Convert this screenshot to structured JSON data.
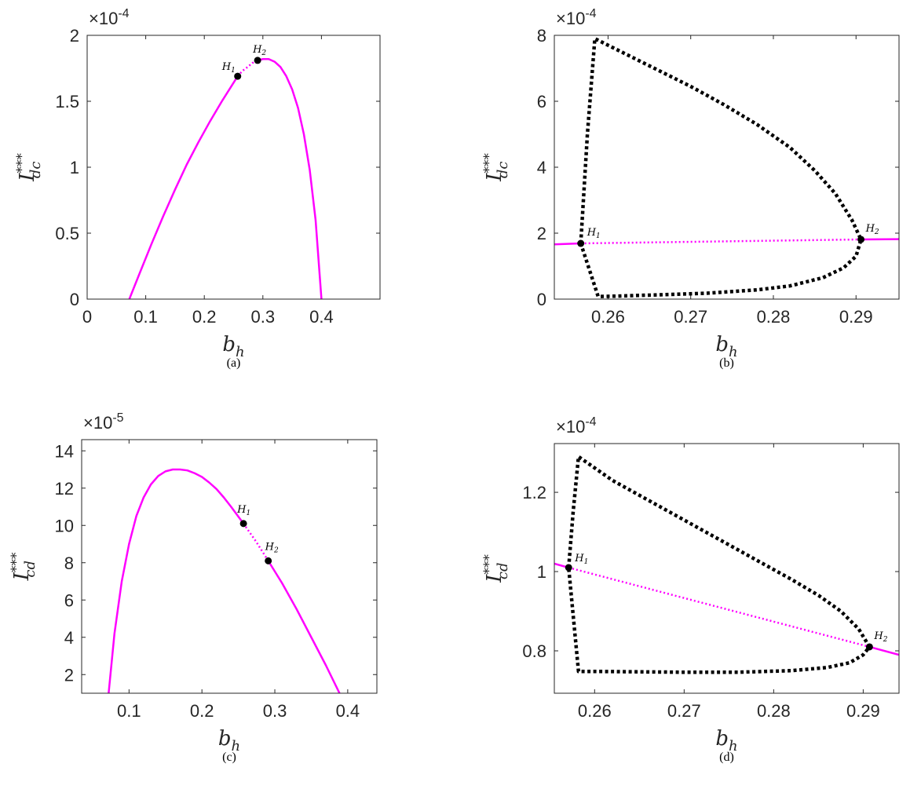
{
  "chart_data": [
    {
      "type": "line",
      "caption": "(a)",
      "scale": {
        "base": "×10",
        "exp": "-4"
      },
      "xlabel": {
        "text": "b",
        "sub": "h"
      },
      "ylabel": {
        "text": "I",
        "sup": "***",
        "sub": "dc"
      },
      "xlim": [
        0,
        0.5
      ],
      "xticks": [
        0,
        0.1,
        0.2,
        0.3,
        0.4
      ],
      "ylim": [
        0,
        2
      ],
      "yticks": [
        0,
        0.5,
        1,
        1.5,
        2
      ],
      "series": [
        {
          "color": "#ff00ff",
          "linestyle": "solid",
          "linewidth": 2.5,
          "x": [
            0.072,
            0.09,
            0.11,
            0.13,
            0.15,
            0.17,
            0.19,
            0.21,
            0.23,
            0.257
          ],
          "values": [
            0,
            0.2,
            0.42,
            0.63,
            0.83,
            1.02,
            1.19,
            1.35,
            1.5,
            1.69
          ]
        },
        {
          "color": "#ff00ff",
          "linestyle": "dotted",
          "linewidth": 2.5,
          "x": [
            0.257,
            0.265,
            0.274,
            0.282,
            0.291
          ],
          "values": [
            1.69,
            1.73,
            1.76,
            1.79,
            1.81
          ]
        },
        {
          "color": "#ff00ff",
          "linestyle": "solid",
          "linewidth": 2.5,
          "x": [
            0.291,
            0.3,
            0.31,
            0.32,
            0.33,
            0.34,
            0.35,
            0.36,
            0.37,
            0.38,
            0.39,
            0.4
          ],
          "values": [
            1.81,
            1.82,
            1.82,
            1.8,
            1.76,
            1.69,
            1.59,
            1.45,
            1.25,
            0.98,
            0.6,
            0
          ]
        }
      ],
      "points": [
        {
          "label": {
            "text": "H",
            "sub": "1"
          },
          "x": 0.257,
          "y": 1.69
        },
        {
          "label": {
            "text": "H",
            "sub": "2"
          },
          "x": 0.291,
          "y": 1.81
        }
      ]
    },
    {
      "type": "line",
      "caption": "(b)",
      "scale": {
        "base": "×10",
        "exp": "-4"
      },
      "xlabel": {
        "text": "b",
        "sub": "h"
      },
      "ylabel": {
        "text": "I",
        "sup": "***",
        "sub": "dc"
      },
      "xlim": [
        0.2535,
        0.2952
      ],
      "xticks": [
        0.26,
        0.27,
        0.28,
        0.29
      ],
      "ylim": [
        0,
        8
      ],
      "yticks": [
        0,
        2,
        4,
        6,
        8
      ],
      "series": [
        {
          "color": "#ff00ff",
          "linestyle": "solid",
          "linewidth": 2.5,
          "x": [
            0.2535,
            0.2567
          ],
          "values": [
            1.66,
            1.69
          ]
        },
        {
          "color": "#ff00ff",
          "linestyle": "dotted",
          "linewidth": 2.5,
          "x": [
            0.2567,
            0.2906
          ],
          "values": [
            1.69,
            1.81
          ]
        },
        {
          "color": "#ff00ff",
          "linestyle": "solid",
          "linewidth": 2.5,
          "x": [
            0.2906,
            0.2952
          ],
          "values": [
            1.81,
            1.82
          ]
        },
        {
          "color": "#000000",
          "linestyle": "dotted",
          "linewidth": 4.5,
          "x": [
            0.2567,
            0.2575,
            0.2584,
            0.262,
            0.266,
            0.27,
            0.274,
            0.278,
            0.282,
            0.285,
            0.2875,
            0.2895,
            0.2906,
            0.29,
            0.2885,
            0.286,
            0.282,
            0.278,
            0.272,
            0.266,
            0.261,
            0.2588,
            0.2567
          ],
          "values": [
            1.69,
            5,
            7.9,
            7.45,
            6.95,
            6.45,
            5.9,
            5.3,
            4.6,
            3.9,
            3.2,
            2.4,
            1.81,
            1.3,
            0.95,
            0.65,
            0.4,
            0.28,
            0.18,
            0.13,
            0.09,
            0.08,
            1.69
          ]
        }
      ],
      "points": [
        {
          "label": {
            "text": "H",
            "sub": "1"
          },
          "x": 0.2567,
          "y": 1.69
        },
        {
          "label": {
            "text": "H",
            "sub": "2"
          },
          "x": 0.2906,
          "y": 1.81
        }
      ]
    },
    {
      "type": "line",
      "caption": "(c)",
      "scale": {
        "base": "×10",
        "exp": "-5"
      },
      "xlabel": {
        "text": "b",
        "sub": "h"
      },
      "ylabel": {
        "text": "I",
        "sup": "***",
        "sub": "cd"
      },
      "xlim": [
        0.035,
        0.44
      ],
      "xticks": [
        0.1,
        0.2,
        0.3,
        0.4
      ],
      "ylim": [
        1.0,
        14.6
      ],
      "yticks": [
        2,
        4,
        6,
        8,
        10,
        12,
        14
      ],
      "series": [
        {
          "color": "#ff00ff",
          "linestyle": "solid",
          "linewidth": 2.5,
          "x": [
            0.072,
            0.08,
            0.09,
            0.1,
            0.11,
            0.12,
            0.13,
            0.14,
            0.15,
            0.16,
            0.17,
            0.18,
            0.19,
            0.2,
            0.21,
            0.22,
            0.23,
            0.24,
            0.257
          ],
          "values": [
            1,
            4.2,
            7.0,
            9.0,
            10.5,
            11.5,
            12.2,
            12.65,
            12.9,
            13.0,
            13.0,
            12.95,
            12.8,
            12.6,
            12.3,
            11.95,
            11.5,
            11.0,
            10.1
          ]
        },
        {
          "color": "#ff00ff",
          "linestyle": "dotted",
          "linewidth": 2.5,
          "x": [
            0.257,
            0.274,
            0.291
          ],
          "values": [
            10.1,
            9.15,
            8.1
          ]
        },
        {
          "color": "#ff00ff",
          "linestyle": "solid",
          "linewidth": 2.5,
          "x": [
            0.291,
            0.31,
            0.33,
            0.35,
            0.37,
            0.39
          ],
          "values": [
            8.1,
            6.9,
            5.5,
            4.0,
            2.5,
            0.9
          ]
        }
      ],
      "points": [
        {
          "label": {
            "text": "H",
            "sub": "1"
          },
          "x": 0.257,
          "y": 10.1
        },
        {
          "label": {
            "text": "H",
            "sub": "2"
          },
          "x": 0.291,
          "y": 8.1
        }
      ]
    },
    {
      "type": "line",
      "caption": "(d)",
      "scale": {
        "base": "×10",
        "exp": "-4"
      },
      "xlabel": {
        "text": "b",
        "sub": "h"
      },
      "ylabel": {
        "text": "I",
        "sup": "***",
        "sub": "cd"
      },
      "xlim": [
        0.2555,
        0.294
      ],
      "xticks": [
        0.26,
        0.27,
        0.28,
        0.29
      ],
      "ylim": [
        0.693,
        1.323
      ],
      "yticks": [
        0.8,
        1,
        1.2
      ],
      "series": [
        {
          "color": "#ff00ff",
          "linestyle": "solid",
          "linewidth": 2.5,
          "x": [
            0.2555,
            0.2571
          ],
          "values": [
            1.02,
            1.01
          ]
        },
        {
          "color": "#ff00ff",
          "linestyle": "dotted",
          "linewidth": 2.5,
          "x": [
            0.2571,
            0.2907
          ],
          "values": [
            1.01,
            0.81
          ]
        },
        {
          "color": "#ff00ff",
          "linestyle": "solid",
          "linewidth": 2.5,
          "x": [
            0.2907,
            0.294
          ],
          "values": [
            0.81,
            0.79
          ]
        },
        {
          "color": "#000000",
          "linestyle": "dotted",
          "linewidth": 4.5,
          "x": [
            0.2571,
            0.2576,
            0.2582,
            0.262,
            0.266,
            0.27,
            0.274,
            0.278,
            0.282,
            0.285,
            0.2875,
            0.2895,
            0.2907,
            0.29,
            0.2885,
            0.286,
            0.282,
            0.276,
            0.27,
            0.265,
            0.2605,
            0.2582,
            0.2571
          ],
          "values": [
            1.01,
            1.15,
            1.29,
            1.23,
            1.18,
            1.13,
            1.08,
            1.03,
            0.98,
            0.94,
            0.9,
            0.855,
            0.81,
            0.79,
            0.77,
            0.758,
            0.75,
            0.746,
            0.746,
            0.747,
            0.748,
            0.748,
            1.01
          ]
        }
      ],
      "points": [
        {
          "label": {
            "text": "H",
            "sub": "1"
          },
          "x": 0.2571,
          "y": 1.01
        },
        {
          "label": {
            "text": "H",
            "sub": "2"
          },
          "x": 0.2907,
          "y": 0.81
        }
      ]
    }
  ]
}
